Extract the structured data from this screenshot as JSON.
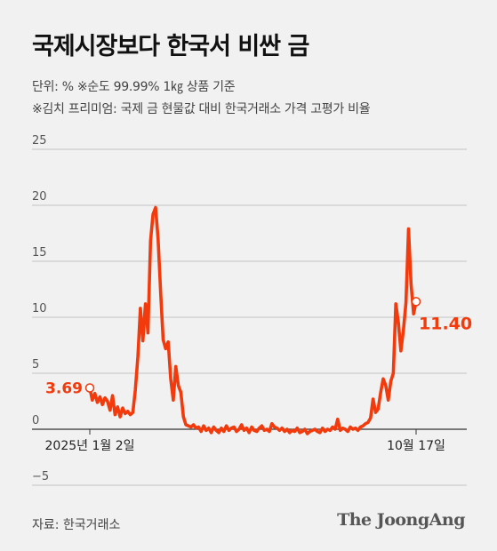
{
  "header": {
    "title": "국제시장보다 한국서 비싼 금",
    "subtitle_unit": "단위: %   ※순도 99.99% 1㎏ 상품 기준",
    "subtitle_note": "※김치 프리미엄: 국제 금 현물값 대비 한국거래소 가격 고평가 비율"
  },
  "footer": {
    "source": "자료: 한국거래소",
    "logo": "The JoongAng"
  },
  "chart_data": {
    "type": "line",
    "title": "국제시장보다 한국서 비싼 금",
    "ylabel": "",
    "xlabel": "",
    "ylim": [
      -5,
      25
    ],
    "yticks": [
      -5,
      0,
      5,
      10,
      15,
      20,
      25
    ],
    "ytick_labels": [
      "−5",
      "0",
      "5",
      "10",
      "15",
      "20",
      "25"
    ],
    "x_labels": [
      "2025년 1월 2일",
      "10월 17일"
    ],
    "grid": true,
    "line_color": "#f23a0c",
    "series": [
      {
        "name": "",
        "values": [
          3.69,
          2.6,
          3.2,
          2.4,
          2.9,
          2.2,
          2.8,
          2.5,
          1.7,
          3.0,
          1.3,
          2.0,
          1.1,
          1.9,
          1.4,
          1.6,
          1.3,
          1.5,
          3.5,
          6.5,
          10.8,
          7.9,
          11.2,
          8.6,
          16.8,
          19.2,
          19.8,
          17.0,
          12.2,
          8.0,
          7.2,
          7.8,
          4.5,
          2.6,
          5.6,
          3.9,
          3.3,
          1.1,
          0.4,
          0.3,
          0.2,
          0.4,
          0.1,
          0.2,
          -0.2,
          0.3,
          -0.1,
          0.1,
          -0.3,
          0.2,
          -0.1,
          -0.3,
          0.1,
          -0.2,
          0.3,
          -0.1,
          0.1,
          0.2,
          -0.2,
          0.0,
          0.4,
          -0.1,
          0.1,
          -0.3,
          0.2,
          -0.1,
          -0.2,
          0.1,
          0.3,
          -0.1,
          0.0,
          -0.2,
          0.5,
          0.2,
          0.1,
          -0.1,
          0.1,
          -0.2,
          0.0,
          -0.3,
          -0.1,
          -0.2,
          0.1,
          -0.3,
          -0.2,
          0.0,
          -0.4,
          -0.2,
          -0.1,
          0.0,
          -0.2,
          -0.3,
          0.1,
          -0.2,
          0.0,
          -0.1,
          0.2,
          0.0,
          0.9,
          -0.1,
          0.1,
          0.0,
          -0.2,
          0.2,
          0.0,
          0.1,
          -0.1,
          0.2,
          0.3,
          0.5,
          0.6,
          1.0,
          2.7,
          1.5,
          1.8,
          3.3,
          4.5,
          3.9,
          2.6,
          4.3,
          5.0,
          11.2,
          9.5,
          7.0,
          8.9,
          11.3,
          17.9,
          13.0,
          10.3,
          11.4
        ]
      }
    ],
    "annotations": [
      {
        "label": "3.69",
        "value": 3.69,
        "position": "start"
      },
      {
        "label": "11.40",
        "value": 11.4,
        "position": "end"
      }
    ]
  }
}
